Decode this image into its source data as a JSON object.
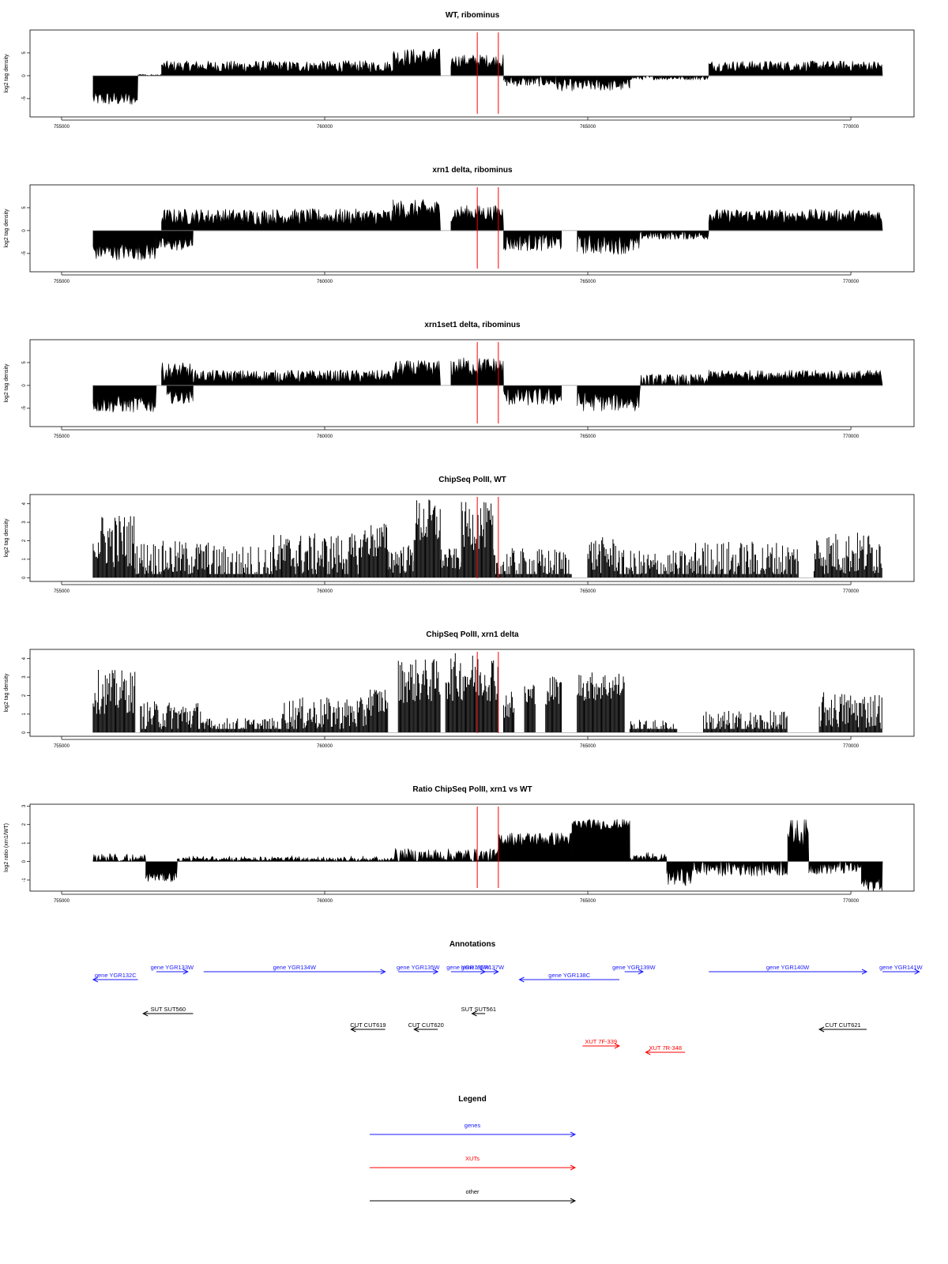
{
  "colors": {
    "gene": "#1a1aff",
    "xut": "#ff0000",
    "other": "#000000",
    "marker": "#ff0000",
    "signal": "#000000"
  },
  "x_ticks": [
    "755000",
    "760000",
    "765000",
    "770000"
  ],
  "chart_data": [
    {
      "type": "area",
      "title": "WT, ribominus",
      "ylabel": "log2 tag density",
      "xlim": [
        754400,
        771200
      ],
      "ylim": [
        -9,
        10
      ],
      "data_x_range": [
        755600,
        770600
      ],
      "y_ticks": [
        "-5",
        "0",
        "5"
      ],
      "y_tick_values": [
        -5,
        0,
        5
      ],
      "markers": [
        762900,
        763300
      ],
      "segments": [
        {
          "x0": 755600,
          "x1": 756450,
          "base": -5.0,
          "amp": 1.6,
          "sign": -1
        },
        {
          "x0": 756450,
          "x1": 756900,
          "base": -0.4,
          "amp": 0.6,
          "sign": 1
        },
        {
          "x0": 756900,
          "x1": 761300,
          "base": 2.0,
          "amp": 1.3,
          "sign": 1
        },
        {
          "x0": 761300,
          "x1": 762200,
          "base": 4.0,
          "amp": 2.0,
          "sign": 1
        },
        {
          "x0": 762400,
          "x1": 763400,
          "base": 3.2,
          "amp": 1.5,
          "sign": 1
        },
        {
          "x0": 763400,
          "x1": 764400,
          "base": -1.2,
          "amp": 1.2,
          "sign": -1
        },
        {
          "x0": 764400,
          "x1": 765800,
          "base": -2.0,
          "amp": 1.4,
          "sign": -1
        },
        {
          "x0": 765800,
          "x1": 767300,
          "base": -0.4,
          "amp": 0.5,
          "sign": -1
        },
        {
          "x0": 767300,
          "x1": 770600,
          "base": 2.1,
          "amp": 1.2,
          "sign": 1
        }
      ]
    },
    {
      "type": "area",
      "title": "xrn1 delta, ribominus",
      "ylabel": "log2 tag density",
      "xlim": [
        754400,
        771200
      ],
      "ylim": [
        -9,
        10
      ],
      "data_x_range": [
        755600,
        770600
      ],
      "y_ticks": [
        "-5",
        "0",
        "5"
      ],
      "y_tick_values": [
        -5,
        0,
        5
      ],
      "markers": [
        762900,
        763300
      ],
      "segments": [
        {
          "x0": 755600,
          "x1": 756800,
          "base": -4.5,
          "amp": 2.0,
          "sign": -1
        },
        {
          "x0": 756800,
          "x1": 757500,
          "base": -3.0,
          "amp": 1.5,
          "sign": -1
        },
        {
          "x0": 756900,
          "x1": 761300,
          "base": 3.0,
          "amp": 1.8,
          "sign": 1
        },
        {
          "x0": 761300,
          "x1": 762200,
          "base": 4.5,
          "amp": 2.3,
          "sign": 1
        },
        {
          "x0": 762400,
          "x1": 763400,
          "base": 3.8,
          "amp": 1.8,
          "sign": 1
        },
        {
          "x0": 763400,
          "x1": 764500,
          "base": -2.5,
          "amp": 2.0,
          "sign": -1
        },
        {
          "x0": 764800,
          "x1": 766000,
          "base": -3.0,
          "amp": 2.2,
          "sign": -1
        },
        {
          "x0": 766000,
          "x1": 767300,
          "base": -1.0,
          "amp": 1.0,
          "sign": -1
        },
        {
          "x0": 767300,
          "x1": 770600,
          "base": 3.2,
          "amp": 1.5,
          "sign": 1
        }
      ]
    },
    {
      "type": "area",
      "title": "xrn1set1 delta, ribominus",
      "ylabel": "log2 tag density",
      "xlim": [
        754400,
        771200
      ],
      "ylim": [
        -9,
        10
      ],
      "data_x_range": [
        755600,
        770600
      ],
      "y_ticks": [
        "-5",
        "0",
        "5"
      ],
      "y_tick_values": [
        -5,
        0,
        5
      ],
      "markers": [
        762900,
        763300
      ],
      "segments": [
        {
          "x0": 755600,
          "x1": 756800,
          "base": -4.0,
          "amp": 2.0,
          "sign": -1
        },
        {
          "x0": 756900,
          "x1": 757500,
          "base": 3.0,
          "amp": 2.0,
          "sign": 1
        },
        {
          "x0": 757000,
          "x1": 757500,
          "base": -2.5,
          "amp": 1.5,
          "sign": -1
        },
        {
          "x0": 757500,
          "x1": 761300,
          "base": 2.0,
          "amp": 1.4,
          "sign": 1
        },
        {
          "x0": 761300,
          "x1": 762200,
          "base": 3.5,
          "amp": 2.0,
          "sign": 1
        },
        {
          "x0": 762400,
          "x1": 763400,
          "base": 4.0,
          "amp": 2.2,
          "sign": 1
        },
        {
          "x0": 763400,
          "x1": 764500,
          "base": -2.5,
          "amp": 2.0,
          "sign": -1
        },
        {
          "x0": 764800,
          "x1": 766000,
          "base": -3.5,
          "amp": 2.2,
          "sign": -1
        },
        {
          "x0": 766000,
          "x1": 767300,
          "base": 1.0,
          "amp": 1.5,
          "sign": 1
        },
        {
          "x0": 767300,
          "x1": 770600,
          "base": 2.2,
          "amp": 1.2,
          "sign": 1
        }
      ]
    },
    {
      "type": "bar",
      "title": "ChipSeq PolII, WT",
      "ylabel": "log2 tag density",
      "xlim": [
        754400,
        771200
      ],
      "ylim": [
        -0.2,
        4.5
      ],
      "data_x_range": [
        755600,
        770600
      ],
      "y_ticks": [
        "0",
        "1",
        "2",
        "3",
        "4"
      ],
      "y_tick_values": [
        0,
        1,
        2,
        3,
        4
      ],
      "markers": [
        762900,
        763300
      ],
      "segments": [
        {
          "x0": 755600,
          "x1": 756400,
          "base": 2.0,
          "amp": 1.5
        },
        {
          "x0": 756400,
          "x1": 757800,
          "base": 1.0,
          "amp": 1.0
        },
        {
          "x0": 757800,
          "x1": 759000,
          "base": 0.6,
          "amp": 1.2
        },
        {
          "x0": 759000,
          "x1": 760700,
          "base": 1.2,
          "amp": 1.2
        },
        {
          "x0": 760700,
          "x1": 761200,
          "base": 2.0,
          "amp": 1.0
        },
        {
          "x0": 761200,
          "x1": 761700,
          "base": 1.0,
          "amp": 0.8
        },
        {
          "x0": 761700,
          "x1": 762200,
          "base": 3.0,
          "amp": 1.3
        },
        {
          "x0": 762200,
          "x1": 762600,
          "base": 1.0,
          "amp": 0.6
        },
        {
          "x0": 762600,
          "x1": 763200,
          "base": 2.8,
          "amp": 1.3
        },
        {
          "x0": 763200,
          "x1": 764700,
          "base": 0.6,
          "amp": 1.0
        },
        {
          "x0": 765000,
          "x1": 765600,
          "base": 1.2,
          "amp": 1.0
        },
        {
          "x0": 765600,
          "x1": 767000,
          "base": 0.5,
          "amp": 1.0
        },
        {
          "x0": 767000,
          "x1": 769000,
          "base": 0.8,
          "amp": 1.2
        },
        {
          "x0": 769300,
          "x1": 770600,
          "base": 1.3,
          "amp": 1.2
        }
      ]
    },
    {
      "type": "bar",
      "title": "ChipSeq PolII, xrn1 delta",
      "ylabel": "log2 tag density",
      "xlim": [
        754400,
        771200
      ],
      "ylim": [
        -0.2,
        4.5
      ],
      "data_x_range": [
        755600,
        770600
      ],
      "y_ticks": [
        "0",
        "1",
        "2",
        "3",
        "4"
      ],
      "y_tick_values": [
        0,
        1,
        2,
        3,
        4
      ],
      "markers": [
        762900,
        763300
      ],
      "segments": [
        {
          "x0": 755600,
          "x1": 756400,
          "base": 2.2,
          "amp": 1.2
        },
        {
          "x0": 756500,
          "x1": 757700,
          "base": 0.9,
          "amp": 0.8
        },
        {
          "x0": 757700,
          "x1": 759200,
          "base": 0.3,
          "amp": 0.5
        },
        {
          "x0": 759200,
          "x1": 760800,
          "base": 1.0,
          "amp": 0.9
        },
        {
          "x0": 760800,
          "x1": 761200,
          "base": 1.7,
          "amp": 0.8
        },
        {
          "x0": 761400,
          "x1": 762200,
          "base": 2.8,
          "amp": 1.2
        },
        {
          "x0": 762300,
          "x1": 763300,
          "base": 3.0,
          "amp": 1.3
        },
        {
          "x0": 763400,
          "x1": 763600,
          "base": 1.5,
          "amp": 0.8
        },
        {
          "x0": 763800,
          "x1": 764000,
          "base": 2.0,
          "amp": 0.8
        },
        {
          "x0": 764200,
          "x1": 764500,
          "base": 2.3,
          "amp": 0.8
        },
        {
          "x0": 764800,
          "x1": 765700,
          "base": 2.5,
          "amp": 0.8
        },
        {
          "x0": 765800,
          "x1": 766700,
          "base": 0.2,
          "amp": 0.5
        },
        {
          "x0": 767200,
          "x1": 768800,
          "base": 0.4,
          "amp": 0.8
        },
        {
          "x0": 769400,
          "x1": 770600,
          "base": 1.2,
          "amp": 1.0
        }
      ]
    },
    {
      "type": "area",
      "title": "Ratio ChipSeq PolII, xrn1 vs WT",
      "ylabel": "log2 ratio (xrn1/WT)",
      "xlim": [
        754400,
        771200
      ],
      "ylim": [
        -1.6,
        3.1
      ],
      "data_x_range": [
        755600,
        770600
      ],
      "y_ticks": [
        "-1",
        "0",
        "1",
        "2",
        "3"
      ],
      "y_tick_values": [
        -1,
        0,
        1,
        2,
        3
      ],
      "markers": [
        762900,
        763300
      ],
      "segments": [
        {
          "x0": 755600,
          "x1": 756600,
          "base": 0.05,
          "amp": 0.4,
          "sign": 1
        },
        {
          "x0": 756600,
          "x1": 757200,
          "base": -0.8,
          "amp": 0.3,
          "sign": -1
        },
        {
          "x0": 757200,
          "x1": 761300,
          "base": -0.2,
          "amp": 0.5,
          "sign": 1
        },
        {
          "x0": 761300,
          "x1": 763300,
          "base": 0.3,
          "amp": 0.4,
          "sign": 1
        },
        {
          "x0": 763300,
          "x1": 764700,
          "base": 1.2,
          "amp": 0.4,
          "sign": 1
        },
        {
          "x0": 764700,
          "x1": 765800,
          "base": 2.0,
          "amp": 0.3,
          "sign": 1
        },
        {
          "x0": 765800,
          "x1": 766500,
          "base": -0.3,
          "amp": 0.8,
          "sign": 1
        },
        {
          "x0": 766500,
          "x1": 767000,
          "base": -0.8,
          "amp": 0.5,
          "sign": -1
        },
        {
          "x0": 767000,
          "x1": 768800,
          "base": -0.3,
          "amp": 0.5,
          "sign": -1
        },
        {
          "x0": 768800,
          "x1": 769200,
          "base": 1.5,
          "amp": 0.8,
          "sign": 1
        },
        {
          "x0": 769200,
          "x1": 770200,
          "base": -0.3,
          "amp": 0.4,
          "sign": -1
        },
        {
          "x0": 770200,
          "x1": 770600,
          "base": -1.2,
          "amp": 0.4,
          "sign": -1
        }
      ]
    }
  ],
  "annotations": {
    "title": "Annotations",
    "xlim": [
      754400,
      771200
    ],
    "items": [
      {
        "label": "gene YGR132C",
        "type": "gene",
        "dir": "left",
        "x0": 755600,
        "x1": 756450,
        "row": 1
      },
      {
        "label": "gene YGR133W",
        "type": "gene",
        "dir": "right",
        "x0": 756800,
        "x1": 757400,
        "row": 0
      },
      {
        "label": "gene YGR134W",
        "type": "gene",
        "dir": "right",
        "x0": 757700,
        "x1": 761150,
        "row": 0
      },
      {
        "label": "gene YGR135W",
        "type": "gene",
        "dir": "right",
        "x0": 761400,
        "x1": 762150,
        "row": 0
      },
      {
        "label": "gene YGR136W",
        "type": "gene",
        "dir": "right",
        "x0": 762400,
        "x1": 763050,
        "row": 0
      },
      {
        "label": "gene YGR137W",
        "type": "gene",
        "dir": "right",
        "x0": 762700,
        "x1": 763300,
        "row": 0
      },
      {
        "label": "gene YGR138C",
        "type": "gene",
        "dir": "left",
        "x0": 763700,
        "x1": 765600,
        "row": 1
      },
      {
        "label": "gene YGR139W",
        "type": "gene",
        "dir": "right",
        "x0": 765700,
        "x1": 766050,
        "row": 0
      },
      {
        "label": "gene YGR140W",
        "type": "gene",
        "dir": "right",
        "x0": 767300,
        "x1": 770300,
        "row": 0
      },
      {
        "label": "gene YGR141W",
        "type": "gene",
        "dir": "right",
        "x0": 770600,
        "x1": 771300,
        "row": 0
      },
      {
        "label": "SUT SUT560",
        "type": "other",
        "dir": "left",
        "x0": 756550,
        "x1": 757500,
        "row": 2
      },
      {
        "label": "SUT SUT561",
        "type": "other",
        "dir": "left",
        "x0": 762800,
        "x1": 763050,
        "row": 2
      },
      {
        "label": "CUT CUT619",
        "type": "other",
        "dir": "left",
        "x0": 760500,
        "x1": 761150,
        "row": 3
      },
      {
        "label": "CUT CUT620",
        "type": "other",
        "dir": "left",
        "x0": 761700,
        "x1": 762150,
        "row": 3
      },
      {
        "label": "CUT CUT621",
        "type": "other",
        "dir": "left",
        "x0": 769400,
        "x1": 770300,
        "row": 3
      },
      {
        "label": "XUT 7F-339",
        "type": "xut",
        "dir": "right",
        "x0": 764900,
        "x1": 765600,
        "row": 4
      },
      {
        "label": "XUT 7R-348",
        "type": "xut",
        "dir": "left",
        "x0": 766100,
        "x1": 766850,
        "row": 5
      }
    ]
  },
  "legend": {
    "title": "Legend",
    "items": [
      {
        "label": "genes",
        "type": "gene"
      },
      {
        "label": "XUTs",
        "type": "xut"
      },
      {
        "label": "other",
        "type": "other"
      }
    ]
  }
}
